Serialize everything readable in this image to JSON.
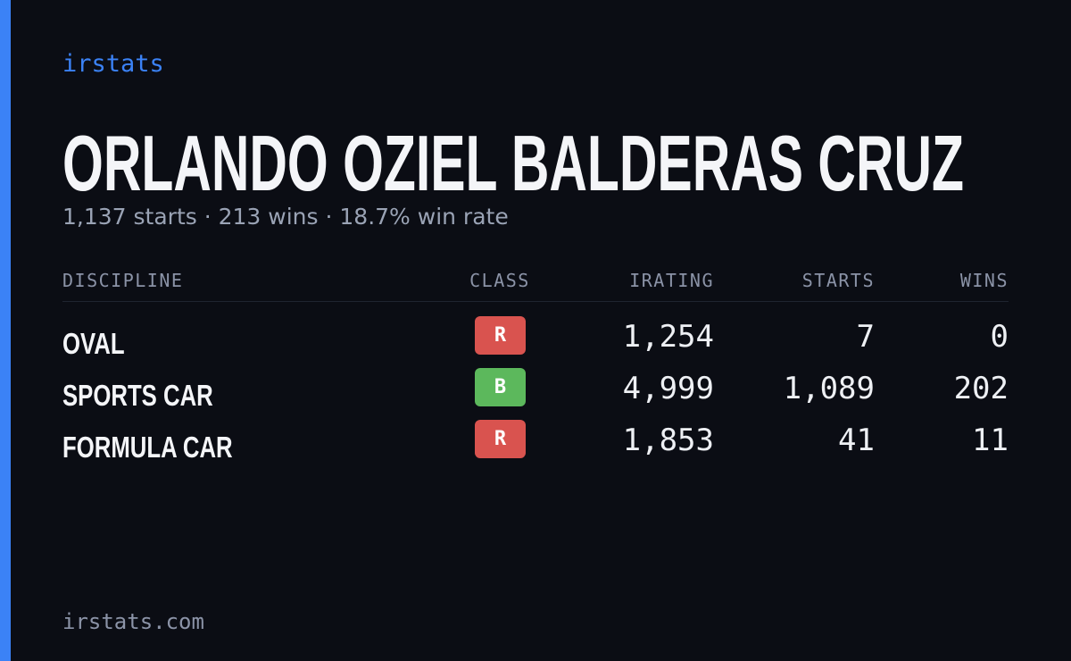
{
  "brand": "irstats",
  "driver": {
    "name": "ORLANDO OZIEL BALDERAS CRUZ",
    "summary": "1,137 starts · 213 wins · 18.7% win rate"
  },
  "table": {
    "headers": [
      "DISCIPLINE",
      "CLASS",
      "IRATING",
      "STARTS",
      "WINS"
    ],
    "rows": [
      {
        "discipline": "OVAL",
        "class": {
          "label": "R",
          "color": "#d9534f"
        },
        "irating": "1,254",
        "starts": "7",
        "wins": "0"
      },
      {
        "discipline": "SPORTS CAR",
        "class": {
          "label": "B",
          "color": "#5cb85c"
        },
        "irating": "4,999",
        "starts": "1,089",
        "wins": "202"
      },
      {
        "discipline": "FORMULA CAR",
        "class": {
          "label": "R",
          "color": "#d9534f"
        },
        "irating": "1,853",
        "starts": "41",
        "wins": "11"
      }
    ]
  },
  "footer": "irstats.com"
}
